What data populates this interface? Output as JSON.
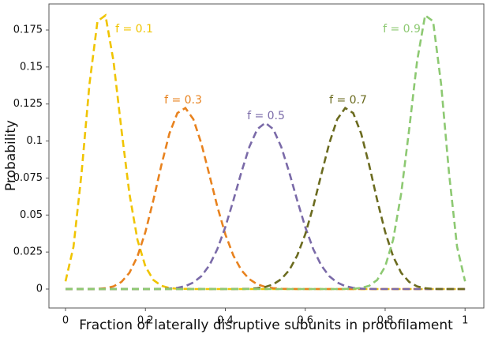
{
  "chart_data": {
    "type": "line",
    "x_label": "Fraction of laterally disruptive subunits in protofilament",
    "y_label": "Probability",
    "x": [
      0,
      0.02,
      0.04,
      0.06,
      0.08,
      0.1,
      0.12,
      0.14,
      0.16,
      0.18,
      0.2,
      0.22,
      0.24,
      0.26,
      0.28,
      0.3,
      0.32,
      0.34,
      0.36,
      0.38,
      0.4,
      0.42,
      0.44,
      0.46,
      0.48,
      0.5,
      0.52,
      0.54,
      0.56,
      0.58,
      0.6,
      0.62,
      0.64,
      0.66,
      0.68,
      0.7,
      0.72,
      0.74,
      0.76,
      0.78,
      0.8,
      0.82,
      0.84,
      0.86,
      0.88,
      0.9,
      0.92,
      0.94,
      0.96,
      0.98,
      1
    ],
    "series": [
      {
        "name": "f = 0.1",
        "color": "#f0c400",
        "values": [
          0.0052,
          0.0286,
          0.0779,
          0.1386,
          0.1809,
          0.1849,
          0.1541,
          0.1076,
          0.0643,
          0.0333,
          0.0152,
          0.0061,
          0.0022,
          0.0007,
          0.0002,
          0.0001,
          0,
          0,
          0,
          0,
          0,
          0,
          0,
          0,
          0,
          0,
          0,
          0,
          0,
          0,
          0,
          0,
          0,
          0,
          0,
          0,
          0,
          0,
          0,
          0,
          0,
          0,
          0,
          0,
          0,
          0,
          0,
          0,
          0,
          0,
          0
        ]
      },
      {
        "name": "f = 0.3",
        "color": "#e8821e",
        "values": [
          0,
          0,
          0,
          0,
          0.0001,
          0.0006,
          0.0018,
          0.0048,
          0.011,
          0.022,
          0.0386,
          0.0602,
          0.0838,
          0.105,
          0.1189,
          0.1223,
          0.1147,
          0.0983,
          0.0772,
          0.0557,
          0.037,
          0.0227,
          0.0128,
          0.0067,
          0.0032,
          0.0014,
          0.0006,
          0.0002,
          0.0001,
          0,
          0,
          0,
          0,
          0,
          0,
          0,
          0,
          0,
          0,
          0,
          0,
          0,
          0,
          0,
          0,
          0,
          0,
          0,
          0,
          0,
          0
        ]
      },
      {
        "name": "f = 0.5",
        "color": "#7a6aa8",
        "values": [
          0,
          0,
          0,
          0,
          0,
          0,
          0,
          0,
          0,
          0,
          0,
          0,
          0.0001,
          0.0003,
          0.0008,
          0.002,
          0.0044,
          0.0087,
          0.016,
          0.027,
          0.0419,
          0.0598,
          0.0788,
          0.096,
          0.108,
          0.1123,
          0.108,
          0.096,
          0.0788,
          0.0598,
          0.0419,
          0.027,
          0.016,
          0.0087,
          0.0044,
          0.002,
          0.0008,
          0.0003,
          0.0001,
          0,
          0,
          0,
          0,
          0,
          0,
          0,
          0,
          0,
          0,
          0,
          0
        ]
      },
      {
        "name": "f = 0.7",
        "color": "#6b6b1f",
        "values": [
          0,
          0,
          0,
          0,
          0,
          0,
          0,
          0,
          0,
          0,
          0,
          0,
          0,
          0,
          0,
          0,
          0,
          0,
          0,
          0,
          0,
          0,
          0.0001,
          0.0002,
          0.0006,
          0.0014,
          0.0032,
          0.0067,
          0.0128,
          0.0227,
          0.037,
          0.0557,
          0.0772,
          0.0983,
          0.1147,
          0.1223,
          0.1189,
          0.105,
          0.0838,
          0.0602,
          0.0386,
          0.022,
          0.011,
          0.0048,
          0.0018,
          0.0006,
          0.0001,
          0,
          0,
          0,
          0
        ]
      },
      {
        "name": "f = 0.9",
        "color": "#8dc972",
        "values": [
          0,
          0,
          0,
          0,
          0,
          0,
          0,
          0,
          0,
          0,
          0,
          0,
          0,
          0,
          0,
          0,
          0,
          0,
          0,
          0,
          0,
          0,
          0,
          0,
          0,
          0,
          0,
          0,
          0,
          0,
          0,
          0,
          0,
          0,
          0,
          0.0001,
          0.0002,
          0.0007,
          0.0022,
          0.0061,
          0.0152,
          0.0333,
          0.0643,
          0.1076,
          0.1541,
          0.1849,
          0.1809,
          0.1386,
          0.0779,
          0.0286,
          0.0052
        ]
      }
    ],
    "xlim": [
      -0.0415,
      1.047
    ],
    "ylim": [
      -0.0128,
      0.1926
    ],
    "xticks": [
      0,
      0.2,
      0.4,
      0.6,
      0.8,
      1
    ],
    "yticks": [
      0,
      0.025,
      0.05,
      0.075,
      0.1,
      0.125,
      0.15,
      0.175
    ]
  }
}
